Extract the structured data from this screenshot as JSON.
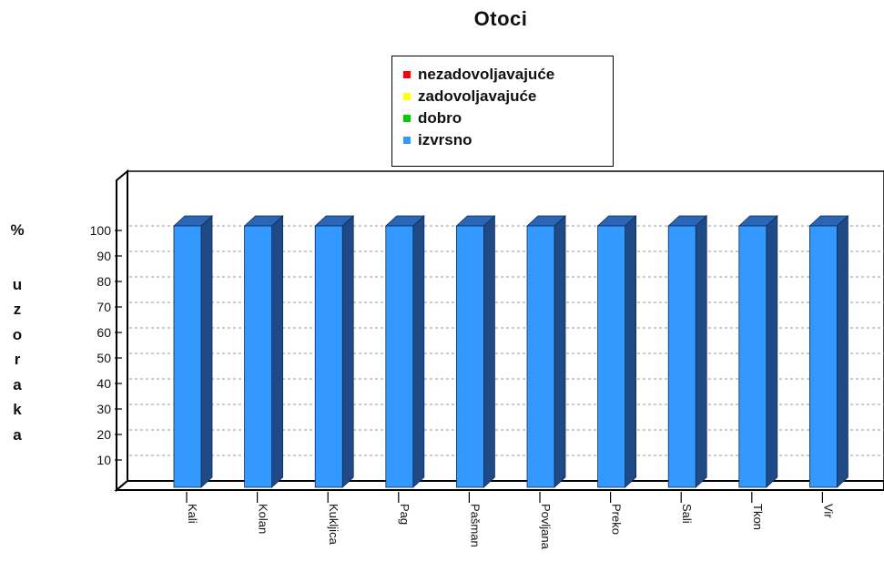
{
  "chart_data": {
    "type": "bar",
    "title": "Otoci",
    "ylabel": "% uzoraka",
    "xlabel": "",
    "categories": [
      "Kali",
      "Kolan",
      "Kukljica",
      "Pag",
      "Pašman",
      "Povljana",
      "Preko",
      "Sali",
      "Tkon",
      "Vir"
    ],
    "series": [
      {
        "name": "nezadovoljavajuće",
        "color": "#ff0000",
        "values": [
          0,
          0,
          0,
          0,
          0,
          0,
          0,
          0,
          0,
          0
        ]
      },
      {
        "name": "zadovoljavajuće",
        "color": "#ffff00",
        "values": [
          0,
          0,
          0,
          0,
          0,
          0,
          0,
          0,
          0,
          0
        ]
      },
      {
        "name": "dobro",
        "color": "#00cc00",
        "values": [
          0,
          0,
          0,
          0,
          0,
          0,
          0,
          0,
          0,
          0
        ]
      },
      {
        "name": "izvrsno",
        "color": "#3399ff",
        "values": [
          100,
          100,
          100,
          100,
          100,
          100,
          100,
          100,
          100,
          100
        ]
      }
    ],
    "yticks": [
      10,
      20,
      30,
      40,
      50,
      60,
      70,
      80,
      90,
      100
    ],
    "ylim": [
      0,
      100
    ],
    "grid": true,
    "legend_position": "top",
    "three_d": true
  }
}
